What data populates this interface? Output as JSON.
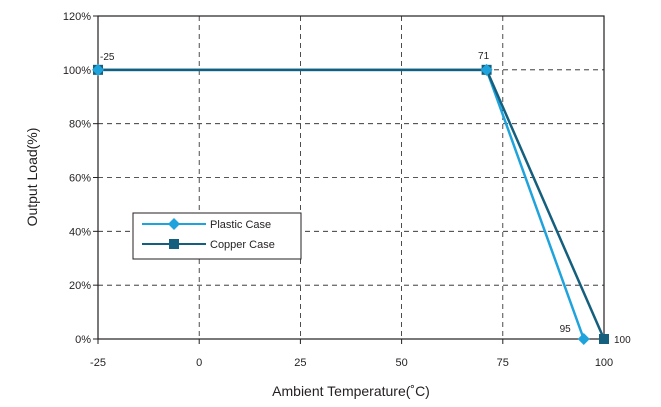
{
  "chart_data": {
    "type": "line",
    "xlabel": "Ambient Temperature(˚C)",
    "ylabel": "Output Load(%)",
    "x_ticks": [
      "-25",
      "0",
      "25",
      "50",
      "75",
      "100"
    ],
    "y_ticks": [
      "0%",
      "20%",
      "40%",
      "60%",
      "80%",
      "100%",
      "120%"
    ],
    "xlim": [
      -25,
      100
    ],
    "ylim": [
      0,
      120
    ],
    "grid": true,
    "legend_position": "left",
    "series": [
      {
        "name": "Plastic Case",
        "color": "#1fa3dd",
        "marker": "diamond",
        "points": [
          [
            -25,
            100
          ],
          [
            71,
            100
          ],
          [
            95,
            0
          ]
        ]
      },
      {
        "name": "Copper Case",
        "color": "#145f7e",
        "marker": "square",
        "points": [
          [
            -25,
            100
          ],
          [
            71,
            100
          ],
          [
            100,
            0
          ]
        ]
      }
    ],
    "annotations": [
      {
        "text": "-25",
        "x": -25,
        "y": 100
      },
      {
        "text": "71",
        "x": 71,
        "y": 100
      },
      {
        "text": "95",
        "x": 95,
        "y": 0
      },
      {
        "text": "100",
        "x": 100,
        "y": 0
      }
    ]
  }
}
